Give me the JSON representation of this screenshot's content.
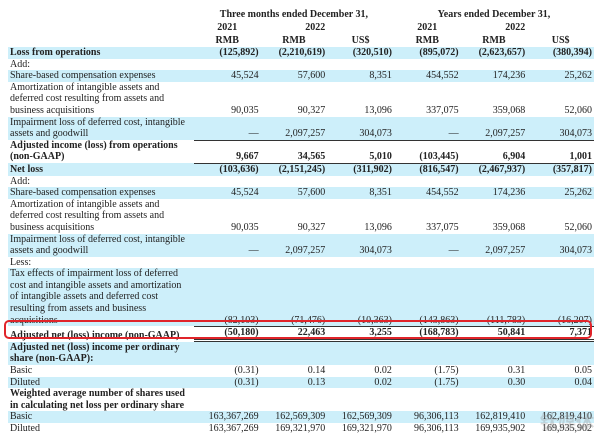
{
  "header": {
    "period_three_months": "Three months ended December 31,",
    "period_years": "Years ended December 31,",
    "years": [
      "2021",
      "2022",
      "",
      "2021",
      "2022",
      ""
    ],
    "currencies": [
      "RMB",
      "RMB",
      "US$",
      "RMB",
      "RMB",
      "US$"
    ]
  },
  "rows": [
    {
      "label": "Loss from operations",
      "values": [
        "(125,892)",
        "(2,210,619)",
        "(320,510)",
        "(895,072)",
        "(2,623,657)",
        "(380,394)"
      ],
      "bold": true,
      "shade": true
    },
    {
      "label": "Add:",
      "values": [
        "",
        "",
        "",
        "",
        "",
        ""
      ]
    },
    {
      "label": "Share-based compensation expenses",
      "values": [
        "45,524",
        "57,600",
        "8,351",
        "454,552",
        "174,236",
        "25,262"
      ],
      "shade": true
    },
    {
      "label": "Amortization of intangible assets and deferred cost resulting from assets and business acquisitions",
      "values": [
        "90,035",
        "90,327",
        "13,096",
        "337,075",
        "359,068",
        "52,060"
      ]
    },
    {
      "label": "Impairment loss of deferred cost, intangible assets and goodwill",
      "values": [
        "—",
        "2,097,257",
        "304,073",
        "—",
        "2,097,257",
        "304,073"
      ],
      "shade": true
    },
    {
      "label": "Adjusted income (loss) from operations (non-GAAP)",
      "values": [
        "9,667",
        "34,565",
        "5,010",
        "(103,445)",
        "6,904",
        "1,001"
      ],
      "bold": true,
      "topline": true
    },
    {
      "label": "Net loss",
      "values": [
        "(103,636)",
        "(2,151,245)",
        "(311,902)",
        "(816,547)",
        "(2,467,937)",
        "(357,817)"
      ],
      "bold": true,
      "shade": true,
      "topline": true
    },
    {
      "label": "Add:",
      "values": [
        "",
        "",
        "",
        "",
        "",
        ""
      ]
    },
    {
      "label": "Share-based compensation expenses",
      "values": [
        "45,524",
        "57,600",
        "8,351",
        "454,552",
        "174,236",
        "25,262"
      ],
      "shade": true
    },
    {
      "label": "Amortization of intangible assets and deferred cost resulting from assets and business acquisitions",
      "values": [
        "90,035",
        "90,327",
        "13,096",
        "337,075",
        "359,068",
        "52,060"
      ]
    },
    {
      "label": "Impairment loss of deferred cost, intangible assets and goodwill",
      "values": [
        "—",
        "2,097,257",
        "304,073",
        "—",
        "2,097,257",
        "304,073"
      ],
      "shade": true
    },
    {
      "label": "Less:",
      "values": [
        "",
        "",
        "",
        "",
        "",
        ""
      ]
    },
    {
      "label": "Tax effects of impairment loss of deferred cost and intangible assets and amortization of intangible assets and deferred cost resulting from assets and business acquisitions",
      "values": [
        "(82,103)",
        "(71,476)",
        "(10,363)",
        "(143,863)",
        "(111,783)",
        "(16,207)"
      ],
      "shade": true
    },
    {
      "label": "Adjusted net (loss) income (non-GAAP)",
      "values": [
        "(50,180)",
        "22,463",
        "3,255",
        "(168,783)",
        "50,841",
        "7,371"
      ],
      "bold": true,
      "topline": true,
      "dbl": true
    },
    {
      "label": "Adjusted net (loss) income per ordinary share (non-GAAP):",
      "values": [
        "",
        "",
        "",
        "",
        "",
        ""
      ],
      "bold": true,
      "shade": true
    },
    {
      "label": "Basic",
      "values": [
        "(0.31)",
        "0.14",
        "0.02",
        "(1.75)",
        "0.31",
        "0.05"
      ]
    },
    {
      "label": "Diluted",
      "values": [
        "(0.31)",
        "0.13",
        "0.02",
        "(1.75)",
        "0.30",
        "0.04"
      ],
      "shade": true
    },
    {
      "label": "Weighted average number of shares used in calculating net loss per ordinary share",
      "values": [
        "",
        "",
        "",
        "",
        "",
        ""
      ],
      "bold": true
    },
    {
      "label": "Basic",
      "values": [
        "163,367,269",
        "162,569,309",
        "162,569,309",
        "96,306,113",
        "162,819,410",
        "162,819,410"
      ],
      "shade": true
    },
    {
      "label": "Diluted",
      "values": [
        "163,367,269",
        "169,321,970",
        "169,321,970",
        "96,306,113",
        "169,935,902",
        "169,935,902"
      ]
    }
  ],
  "watermark": "钛媒体"
}
